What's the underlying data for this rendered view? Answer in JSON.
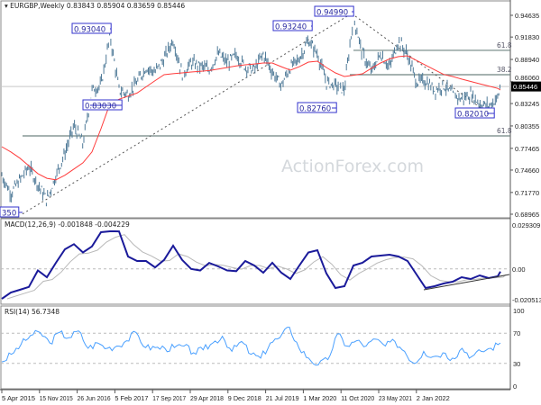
{
  "chart_data": [
    {
      "type": "bar",
      "panel": "price",
      "title": "EURGBP,Weekly",
      "ohlc_header": [
        "0.83843",
        "0.85904",
        "0.83659",
        "0.85446"
      ],
      "last_price": "0.85446",
      "ylim": [
        0.685,
        0.9661
      ],
      "y_ticks": [
        "0.94635",
        "0.91830",
        "0.88940",
        "0.86060",
        "0.83245",
        "0.80355",
        "0.77465",
        "0.74660",
        "0.71770",
        "0.68965"
      ],
      "close_samples": [
        0.7396,
        0.7164,
        0.7338,
        0.7512,
        0.728,
        0.708,
        0.7396,
        0.7687,
        0.8035,
        0.7803,
        0.85,
        0.8558,
        0.92,
        0.85,
        0.844,
        0.86,
        0.879,
        0.873,
        0.89,
        0.915,
        0.87,
        0.8848,
        0.881,
        0.876,
        0.8964,
        0.885,
        0.895,
        0.88,
        0.876,
        0.8964,
        0.8732,
        0.8558,
        0.879,
        0.8906,
        0.9138,
        0.8964,
        0.86,
        0.8558,
        0.85,
        0.945,
        0.8964,
        0.8732,
        0.8964,
        0.879,
        0.9138,
        0.895,
        0.86,
        0.8616,
        0.85,
        0.8558,
        0.8441,
        0.8383,
        0.8441,
        0.8325,
        0.8291,
        0.84,
        0.8546
      ],
      "moving_average": [
        0.7768,
        0.77,
        0.762,
        0.752,
        0.742,
        0.736,
        0.734,
        0.74,
        0.748,
        0.756,
        0.77,
        0.8,
        0.8325,
        0.838,
        0.842,
        0.846,
        0.854,
        0.862,
        0.8697,
        0.871,
        0.872,
        0.8732,
        0.874,
        0.875,
        0.877,
        0.879,
        0.881,
        0.8825,
        0.8835,
        0.8848,
        0.8848,
        0.88,
        0.8755,
        0.88,
        0.886,
        0.8871,
        0.879,
        0.872,
        0.8674,
        0.869,
        0.8709,
        0.878,
        0.8848,
        0.89,
        0.893,
        0.8941,
        0.888,
        0.882,
        0.876,
        0.87,
        0.8674,
        0.864,
        0.861,
        0.858,
        0.855,
        0.852,
        0.85
      ],
      "ma_color": "#ff3b3b",
      "bar_color": "#4f7a98",
      "annotations": [
        {
          "text": "0.93040",
          "price": 0.9304
        },
        {
          "text": "0.83030",
          "price": 0.8303
        },
        {
          "text": "0.93240",
          "price": 0.9324
        },
        {
          "text": "0.94990",
          "price": 0.9499
        },
        {
          "text": "0.82760",
          "price": 0.8276
        },
        {
          "text": "0.82010",
          "price": 0.8201
        },
        {
          "text": "350",
          "price": 0.6835
        }
      ],
      "fib_levels": [
        {
          "text": "61.8",
          "price": 0.9011
        },
        {
          "text": "38.2",
          "price": 0.8697
        },
        {
          "text": "61.8",
          "price": 0.7907
        }
      ],
      "trendlines": [
        {
          "from_price": 0.69,
          "to_price": 0.9487
        },
        {
          "from_price": 0.9487,
          "to_price": 0.821
        }
      ],
      "watermark": "ActionForex.com"
    },
    {
      "type": "line",
      "panel": "macd",
      "title": "MACD(12,26,9)",
      "header_values": [
        "-0.001848",
        "-0.004229"
      ],
      "ylim": [
        -0.0205,
        0.0293
      ],
      "y_ticks": [
        "0.029309",
        "0.00",
        "-0.020513"
      ],
      "values": [
        -0.0199,
        -0.0157,
        -0.0139,
        -0.012,
        -0.001,
        -0.0055,
        0.0041,
        0.0131,
        0.0165,
        0.011,
        0.015,
        0.0245,
        0.0251,
        0.025,
        0.0083,
        0.0053,
        0.0053,
        0.001,
        0.006,
        0.0155,
        0.006,
        0.0,
        -0.001,
        0.004,
        0.0017,
        -0.001,
        -0.0015,
        0.0053,
        0.0023,
        -0.0025,
        0.0041,
        -0.0025,
        -0.0067,
        0.0023,
        0.011,
        0.0125,
        -0.003,
        -0.0127,
        -0.0115,
        0.0023,
        0.0041,
        0.0083,
        0.0089,
        0.0095,
        0.0083,
        0.0053,
        -0.0037,
        -0.0127,
        -0.0115,
        -0.0097,
        -0.0085,
        -0.0055,
        -0.0067,
        -0.0043,
        -0.0061,
        -0.0049,
        -0.0018
      ],
      "macd_color": "#1a1a9a",
      "signal_color": "#b8b8b8"
    },
    {
      "type": "line",
      "panel": "rsi",
      "title": "RSI(14)",
      "header_value": "56.7348",
      "ylim": [
        0,
        100
      ],
      "y_ticks": [
        "100",
        "70",
        "30",
        "0"
      ],
      "values": [
        32,
        42,
        55,
        67,
        71,
        57,
        71,
        64,
        73,
        50,
        57,
        50,
        53,
        60,
        71,
        51,
        51,
        50,
        51,
        53,
        44,
        48,
        57,
        66,
        46,
        59,
        42,
        37,
        57,
        64,
        78,
        50,
        37,
        28,
        35,
        69,
        53,
        60,
        53,
        62,
        53,
        59,
        46,
        30,
        46,
        39,
        44,
        37,
        50,
        39,
        46,
        50,
        57
      ],
      "color": "#4aa0ff"
    }
  ],
  "x_ticks": [
    "5 Apr 2015",
    "15 Nov 2015",
    "26 Jun 2016",
    "5 Feb 2017",
    "17 Sep 2017",
    "29 Apr 2018",
    "9 Dec 2018",
    "21 Jul 2019",
    "1 Mar 2020",
    "11 Oct 2020",
    "23 May 2021",
    "2 Jan 2022"
  ]
}
